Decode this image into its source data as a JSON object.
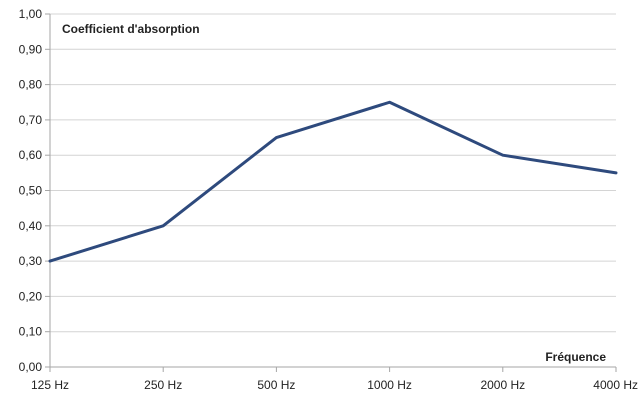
{
  "chart_data": {
    "type": "line",
    "categories": [
      "125 Hz",
      "250 Hz",
      "500 Hz",
      "1000 Hz",
      "2000 Hz",
      "4000 Hz"
    ],
    "series": [
      {
        "values": [
          0.3,
          0.4,
          0.65,
          0.75,
          0.6,
          0.55
        ]
      }
    ],
    "title": "",
    "xlabel": "Fréquence",
    "ylabel": "Coefficient d'absorption",
    "ylim": [
      0,
      1
    ],
    "yticks": [
      "0,00",
      "0,10",
      "0,20",
      "0,30",
      "0,40",
      "0,50",
      "0,60",
      "0,70",
      "0,80",
      "0,90",
      "1,00"
    ],
    "grid": true,
    "legend": "none",
    "colors": {
      "line": "#2e4a7d",
      "grid": "#d4d4d4",
      "axis": "#a6a6a6"
    }
  }
}
